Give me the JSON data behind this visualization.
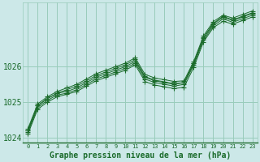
{
  "xlabel": "Graphe pression niveau de la mer (hPa)",
  "background_color": "#cce8e8",
  "grid_color": "#99ccbb",
  "line_color": "#1a6b2a",
  "hours": [
    0,
    1,
    2,
    3,
    4,
    5,
    6,
    7,
    8,
    9,
    10,
    11,
    12,
    13,
    14,
    15,
    16,
    17,
    18,
    19,
    20,
    21,
    22,
    23
  ],
  "series": [
    [
      1024.15,
      1024.85,
      1025.05,
      1025.2,
      1025.25,
      1025.35,
      1025.5,
      1025.65,
      1025.75,
      1025.85,
      1025.95,
      1026.1,
      1025.65,
      1025.55,
      1025.5,
      1025.45,
      1025.5,
      1026.05,
      1026.75,
      1027.15,
      1027.35,
      1027.25,
      1027.35,
      1027.45
    ],
    [
      1024.2,
      1024.9,
      1025.1,
      1025.25,
      1025.3,
      1025.4,
      1025.55,
      1025.7,
      1025.8,
      1025.9,
      1026.0,
      1026.15,
      1025.7,
      1025.6,
      1025.55,
      1025.5,
      1025.55,
      1026.1,
      1026.8,
      1027.2,
      1027.4,
      1027.3,
      1027.4,
      1027.5
    ],
    [
      1024.2,
      1024.9,
      1025.1,
      1025.25,
      1025.35,
      1025.45,
      1025.6,
      1025.75,
      1025.85,
      1025.95,
      1026.05,
      1026.2,
      1025.72,
      1025.62,
      1025.57,
      1025.52,
      1025.55,
      1026.1,
      1026.82,
      1027.22,
      1027.42,
      1027.32,
      1027.42,
      1027.52
    ],
    [
      1024.25,
      1024.95,
      1025.15,
      1025.3,
      1025.4,
      1025.5,
      1025.65,
      1025.8,
      1025.9,
      1026.0,
      1026.1,
      1026.25,
      1025.78,
      1025.68,
      1025.63,
      1025.58,
      1025.6,
      1026.15,
      1026.87,
      1027.27,
      1027.45,
      1027.37,
      1027.47,
      1027.57
    ],
    [
      1024.1,
      1024.8,
      1025.0,
      1025.15,
      1025.22,
      1025.3,
      1025.45,
      1025.6,
      1025.7,
      1025.8,
      1025.9,
      1026.05,
      1025.58,
      1025.48,
      1025.43,
      1025.38,
      1025.42,
      1025.98,
      1026.7,
      1027.1,
      1027.28,
      1027.2,
      1027.3,
      1027.4
    ]
  ],
  "ylim": [
    1023.85,
    1027.8
  ],
  "yticks": [
    1024,
    1025,
    1026
  ],
  "xticks": [
    0,
    1,
    2,
    3,
    4,
    5,
    6,
    7,
    8,
    9,
    10,
    11,
    12,
    13,
    14,
    15,
    16,
    17,
    18,
    19,
    20,
    21,
    22,
    23
  ],
  "figsize": [
    3.2,
    2.0
  ],
  "dpi": 100
}
